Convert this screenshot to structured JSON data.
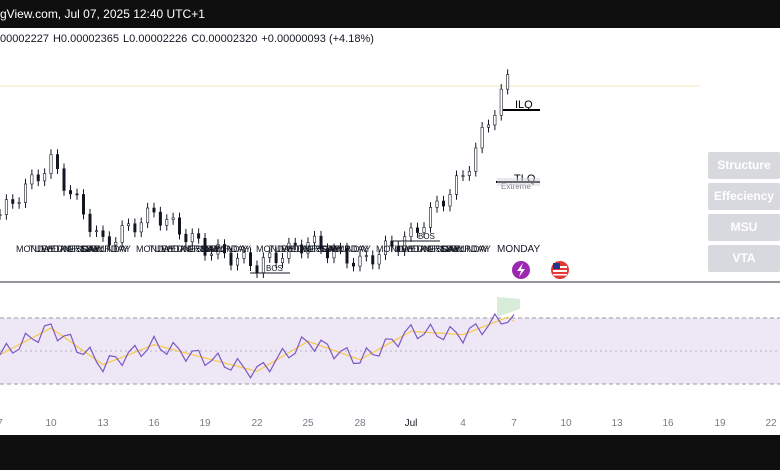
{
  "header": {
    "title": "gView.com, Jul 07, 2025 12:40 UTC+1"
  },
  "ohlc": {
    "open": "00002227",
    "high_label": "H",
    "high": "0.00002365",
    "low_label": "L",
    "low": "0.00002226",
    "close_label": "C",
    "close": "0.00002320",
    "change": "+0.00000093 (+4.18%)"
  },
  "markers": {
    "ilq": "ILQ",
    "tlq": "TLQ",
    "extreme": "Extreme",
    "bos": "BOS",
    "day_labels": [
      "MONDAY",
      "TUESDAY",
      "WEDNESDAY",
      "THURSDAY",
      "FRIDAY",
      "SATURDAY",
      "SUNDAY"
    ],
    "monday": "MONDAY"
  },
  "side_panel": [
    "Structure",
    "Effeciency",
    "MSU",
    "VTA"
  ],
  "time_axis": [
    "7",
    "10",
    "13",
    "16",
    "19",
    "22",
    "25",
    "28",
    "Jul",
    "4",
    "7",
    "10",
    "13",
    "16",
    "19",
    "22"
  ],
  "colors": {
    "candle": "#131722",
    "rsi_line": "#7e57c2",
    "rsi_ma": "#f7c948",
    "rsi_band": "#ede7f6",
    "side_button": "#d7d9de",
    "bars": "#0f0f0f"
  },
  "icons": [
    "lightning-icon",
    "us-flag-icon"
  ],
  "chart_data": {
    "type": "candlestick",
    "title": "",
    "xlabel": "",
    "ylabel": "",
    "x": [
      "7",
      "10",
      "13",
      "16",
      "19",
      "22",
      "25",
      "28",
      "Jul",
      "4",
      "7"
    ],
    "close": [
      1.62e-05,
      1.87e-05,
      1.48e-05,
      1.63e-05,
      1.46e-05,
      1.38e-05,
      1.49e-05,
      1.39e-05,
      1.52e-05,
      1.8e-05,
      2.32e-05
    ],
    "rsi": [
      46,
      62,
      40,
      52,
      44,
      36,
      54,
      43,
      60,
      58,
      70
    ],
    "grid": false
  }
}
